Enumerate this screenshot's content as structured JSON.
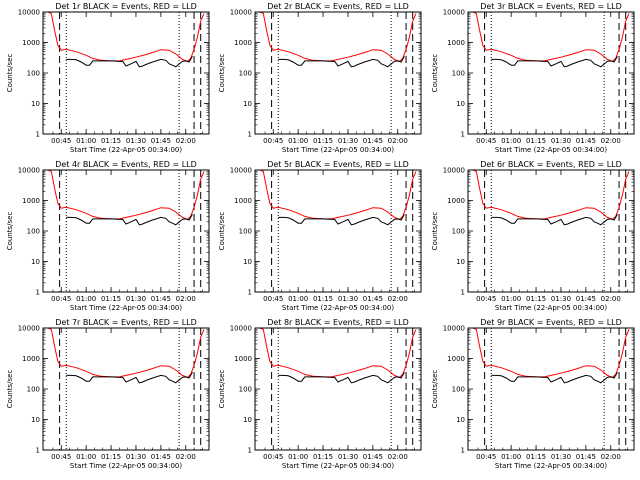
{
  "chart_data": [
    {
      "title": "Det 1r BLACK = Events, RED = LLD"
    },
    {
      "title": "Det 2r BLACK = Events, RED = LLD"
    },
    {
      "title": "Det 3r BLACK = Events, RED = LLD"
    },
    {
      "title": "Det 4r BLACK = Events, RED = LLD"
    },
    {
      "title": "Det 5r BLACK = Events, RED = LLD"
    },
    {
      "title": "Det 6r BLACK = Events, RED = LLD"
    },
    {
      "title": "Det 7r BLACK = Events, RED = LLD"
    },
    {
      "title": "Det 8r BLACK = Events, RED = LLD"
    },
    {
      "title": "Det 9r BLACK = Events, RED = LLD"
    }
  ],
  "shared": {
    "type": "line",
    "xlabel": "Start Time (22-Apr-05 00:34:00)",
    "ylabel": "Counts/sec",
    "x_ticks": [
      "00:45",
      "01:00",
      "01:15",
      "01:30",
      "01:45",
      "02:00"
    ],
    "x_tick_minutes": [
      11,
      26,
      41,
      56,
      71,
      86
    ],
    "xlim_minutes": [
      0,
      100
    ],
    "y_ticks": [
      "1",
      "10",
      "100",
      "1000",
      "10000"
    ],
    "y_tick_values": [
      1,
      10,
      100,
      1000,
      10000
    ],
    "ylim": [
      1,
      10000
    ],
    "y_scale": "log",
    "dashed_vlines_minutes": [
      10,
      91,
      95
    ],
    "dotted_vlines_minutes": [
      14,
      82
    ],
    "series": [
      {
        "name": "LLD",
        "color": "#ff0000",
        "x": [
          0,
          3,
          5,
          7,
          9,
          11,
          14,
          20,
          26,
          30,
          35,
          41,
          46,
          50,
          56,
          61,
          66,
          71,
          76,
          80,
          84,
          87,
          89,
          91,
          93,
          95,
          97
        ],
        "y": [
          10000,
          10000,
          9000,
          2500,
          800,
          560,
          600,
          500,
          380,
          300,
          260,
          250,
          250,
          280,
          330,
          390,
          470,
          580,
          560,
          420,
          280,
          240,
          300,
          600,
          1500,
          5000,
          9000
        ]
      },
      {
        "name": "Events",
        "color": "#000000",
        "x": [
          14,
          17,
          20,
          23,
          26,
          28,
          30,
          32,
          35,
          41,
          46,
          48,
          50,
          53,
          56,
          58,
          60,
          62,
          66,
          71,
          74,
          76,
          78,
          80,
          84,
          86,
          88,
          90
        ],
        "y": [
          280,
          280,
          270,
          230,
          180,
          180,
          250,
          250,
          250,
          250,
          240,
          240,
          170,
          200,
          240,
          160,
          170,
          190,
          230,
          280,
          260,
          200,
          180,
          160,
          240,
          250,
          230,
          350
        ]
      }
    ]
  }
}
